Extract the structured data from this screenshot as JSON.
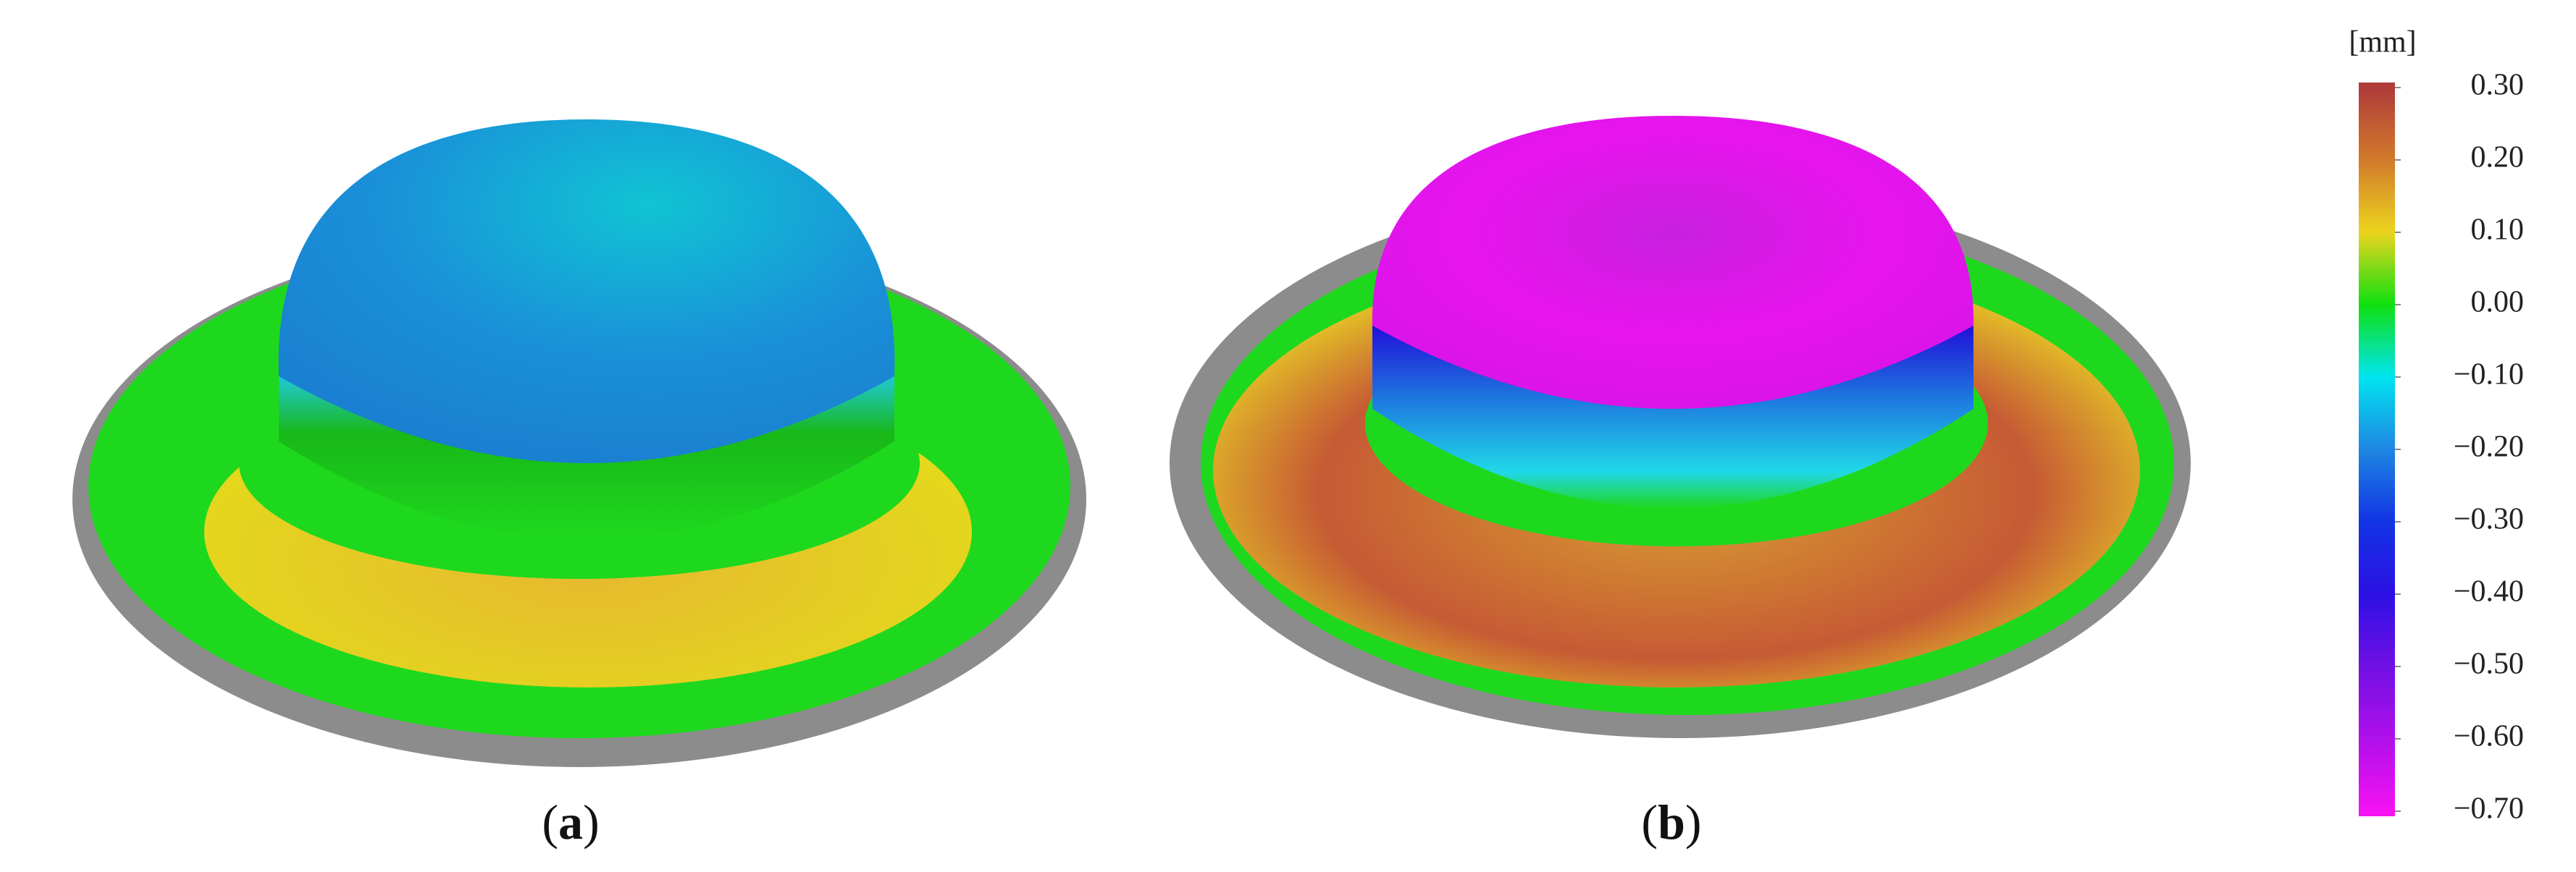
{
  "panels": [
    {
      "label_parts": [
        "(",
        "a",
        ")"
      ]
    },
    {
      "label_parts": [
        "(",
        "b",
        ")"
      ]
    }
  ],
  "colorbar": {
    "unit": "[mm]",
    "lim": [
      -0.7,
      0.3
    ],
    "ticks": [
      {
        "value": 0.3,
        "label": "0.30"
      },
      {
        "value": 0.2,
        "label": "0.20"
      },
      {
        "value": 0.1,
        "label": "0.10"
      },
      {
        "value": 0,
        "label": "0.00"
      },
      {
        "value": -0.1,
        "label": "−0.10"
      },
      {
        "value": -0.2,
        "label": "−0.20"
      },
      {
        "value": -0.3,
        "label": "−0.30"
      },
      {
        "value": -0.4,
        "label": "−0.40"
      },
      {
        "value": -0.5,
        "label": "−0.50"
      },
      {
        "value": -0.6,
        "label": "−0.60"
      },
      {
        "value": -0.7,
        "label": "−0.70"
      }
    ],
    "colors": [
      "#b03c3a",
      "#d27a2c",
      "#ecd41e",
      "#10e010",
      "#00e4f0",
      "#1e86e2",
      "#1234e4",
      "#2c10e4",
      "#7010e4",
      "#b010ea",
      "#f412f2"
    ]
  }
}
